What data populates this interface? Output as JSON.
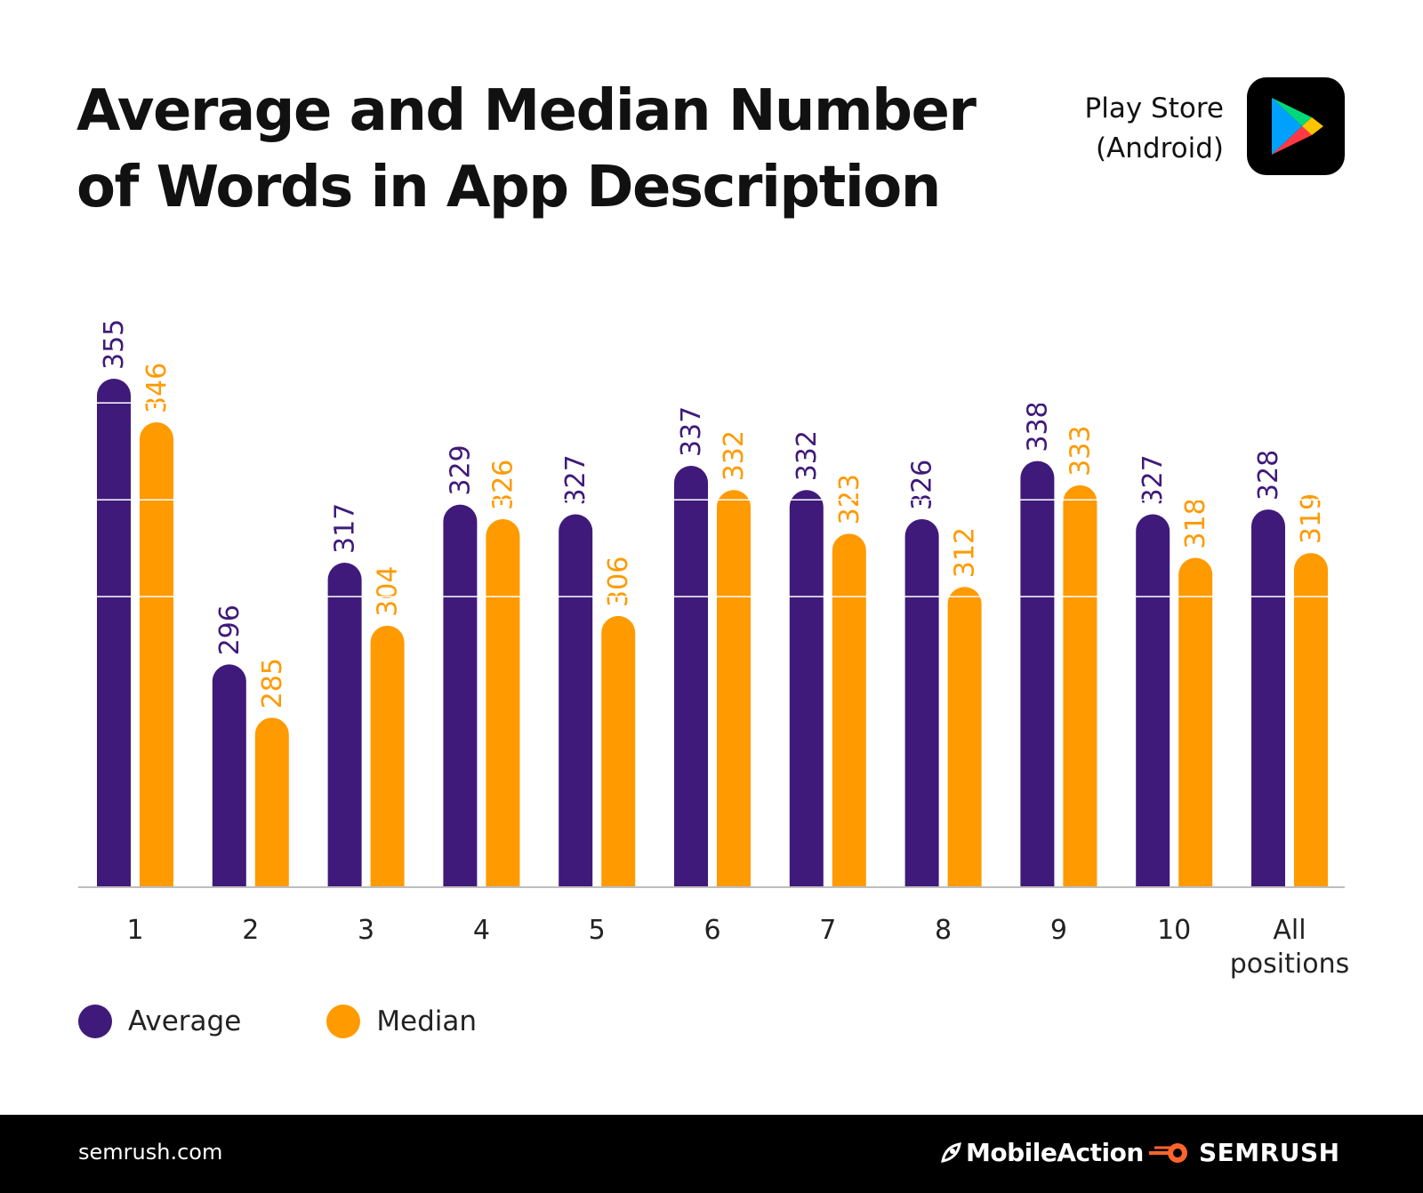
{
  "header": {
    "title_line1": "Average and Median Number",
    "title_line2": "of Words in App Description",
    "store_line1": "Play Store",
    "store_line2": "(Android)",
    "store_icon": "google-play-icon"
  },
  "chart_data": {
    "type": "bar",
    "categories": [
      "1",
      "2",
      "3",
      "4",
      "5",
      "6",
      "7",
      "8",
      "9",
      "10",
      "All positions"
    ],
    "series": [
      {
        "name": "Average",
        "color": "#3f1a7a",
        "values": [
          355,
          296,
          317,
          329,
          327,
          337,
          332,
          326,
          338,
          327,
          328
        ]
      },
      {
        "name": "Median",
        "color": "#ff9a00",
        "values": [
          346,
          285,
          304,
          326,
          306,
          332,
          323,
          312,
          333,
          318,
          319
        ]
      }
    ],
    "grid": true,
    "legend": "bottom-left"
  },
  "legend": [
    {
      "label": "Average",
      "color": "#3f1a7a"
    },
    {
      "label": "Median",
      "color": "#ff9a00"
    }
  ],
  "footer": {
    "site": "semrush.com",
    "brand1": "MobileAction",
    "brand2": "SEMRUSH",
    "brand2_color": "#ff642d"
  }
}
